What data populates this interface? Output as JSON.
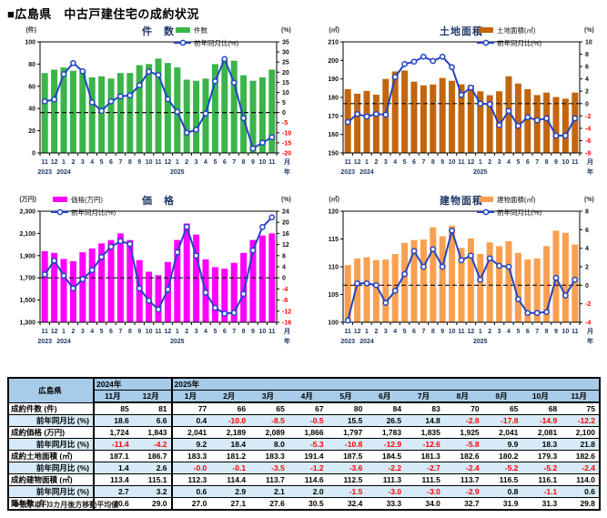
{
  "page_title": "■広島県　中古戸建住宅の成約状況",
  "footnote": "※数字は、3カ月後方移動平均値",
  "axis": {
    "month_suffix": "月",
    "year_suffix": "年"
  },
  "chart_data": [
    {
      "key": "kensu",
      "type": "bar+line",
      "title": "件　数",
      "left_unit": "(件)",
      "right_unit": "(%)",
      "legend_bar": "件数",
      "legend_line": "前年同月比(%)",
      "legend_pos": "right",
      "bar_color": "#3cb44a",
      "line_color": "#2244c4",
      "left_min": 0,
      "left_max": 100,
      "left_step": 20,
      "right_min": -20,
      "right_max": 35,
      "right_step": 5,
      "months": [
        "11",
        "12",
        "1",
        "2",
        "3",
        "4",
        "5",
        "6",
        "7",
        "8",
        "9",
        "10",
        "11",
        "12",
        "1",
        "2",
        "3",
        "4",
        "5",
        "6",
        "7",
        "8",
        "9",
        "10",
        "11"
      ],
      "years": [
        {
          "label": "2023",
          "index": 0
        },
        {
          "label": "2024",
          "index": 2
        },
        {
          "label": "2025",
          "index": 14
        }
      ],
      "bars": [
        72,
        75,
        77,
        74,
        74,
        68,
        69,
        67,
        72,
        72,
        79,
        80,
        85,
        81,
        77,
        66,
        65,
        67,
        80,
        84,
        83,
        70,
        65,
        68,
        75
      ],
      "line": [
        5.5,
        6.5,
        19.0,
        24.5,
        20.5,
        5.0,
        0.8,
        5.5,
        8.0,
        8.5,
        13.5,
        20.3,
        18.6,
        6.6,
        0.4,
        -10.0,
        -8.5,
        -0.5,
        15.5,
        26.5,
        14.8,
        -2.8,
        -17.8,
        -14.9,
        -12.2
      ]
    },
    {
      "key": "tochimenseki",
      "type": "bar+line",
      "title": "土地面積",
      "left_unit": "(㎡)",
      "right_unit": "(%)",
      "legend_bar": "土地面積(㎡)",
      "legend_line": "前年同月比(%)",
      "legend_pos": "right",
      "bar_color": "#c2660e",
      "line_color": "#2244c4",
      "left_min": 150,
      "left_max": 210,
      "left_step": 10,
      "right_min": -8,
      "right_max": 10,
      "right_step": 2,
      "months": [
        "11",
        "12",
        "1",
        "2",
        "3",
        "4",
        "5",
        "6",
        "7",
        "8",
        "9",
        "10",
        "11",
        "12",
        "1",
        "2",
        "3",
        "4",
        "5",
        "6",
        "7",
        "8",
        "9",
        "10",
        "11"
      ],
      "years": [
        {
          "label": "2023",
          "index": 0
        },
        {
          "label": "2024",
          "index": 2
        },
        {
          "label": "2025",
          "index": 14
        }
      ],
      "bars": [
        184.5,
        182.0,
        183.5,
        181.5,
        190.0,
        194.0,
        194.5,
        188.5,
        186.5,
        187.0,
        190.5,
        189.0,
        187.1,
        186.7,
        183.3,
        181.2,
        183.3,
        191.4,
        187.5,
        184.5,
        181.3,
        182.6,
        180.2,
        179.3,
        182.6
      ],
      "line": [
        -3.0,
        -1.7,
        -2.1,
        -1.7,
        -1.8,
        4.3,
        6.4,
        6.8,
        7.6,
        6.9,
        7.6,
        5.9,
        1.4,
        2.6,
        -0.0,
        -0.1,
        -3.5,
        -1.2,
        -3.6,
        -2.2,
        -2.7,
        -2.4,
        -5.2,
        -5.2,
        -2.4
      ]
    },
    {
      "key": "kakaku",
      "type": "bar+line",
      "title": "価　格",
      "left_unit": "(万円)",
      "right_unit": "(%)",
      "legend_bar": "価格(万円)",
      "legend_line": "前年同月比(%)",
      "legend_pos": "left",
      "bar_color": "#ff00ff",
      "line_color": "#2244c4",
      "left_min": 1300,
      "left_max": 2300,
      "left_step": 200,
      "right_min": -16,
      "right_max": 24,
      "right_step": 4,
      "months": [
        "11",
        "12",
        "1",
        "2",
        "3",
        "4",
        "5",
        "6",
        "7",
        "8",
        "9",
        "10",
        "11",
        "12",
        "1",
        "2",
        "3",
        "4",
        "5",
        "6",
        "7",
        "8",
        "9",
        "10",
        "11"
      ],
      "years": [
        {
          "label": "2023",
          "index": 0
        },
        {
          "label": "2024",
          "index": 2
        },
        {
          "label": "2025",
          "index": 14
        }
      ],
      "bars": [
        1940,
        1925,
        1870,
        1850,
        1930,
        1965,
        2010,
        2040,
        2100,
        2040,
        1860,
        1755,
        1724,
        1843,
        2041,
        2189,
        2089,
        1866,
        1797,
        1783,
        1835,
        1925,
        2041,
        2081,
        2100
      ],
      "line": [
        1.2,
        6.2,
        0.8,
        -3.8,
        -0.5,
        2.8,
        7.5,
        11.2,
        13.2,
        12.2,
        -3.8,
        -8.2,
        -11.4,
        -4.2,
        9.2,
        18.4,
        8.0,
        -5.3,
        -10.8,
        -12.9,
        -12.6,
        -5.8,
        9.9,
        18.3,
        21.8
      ]
    },
    {
      "key": "tatemonomenseki",
      "type": "bar+line",
      "title": "建物面積",
      "left_unit": "(㎡)",
      "right_unit": "(%)",
      "legend_bar": "建物面積(㎡)",
      "legend_line": "前年同月比(%)",
      "legend_pos": "right",
      "bar_color": "#f9a050",
      "line_color": "#2244c4",
      "left_min": 100,
      "left_max": 120,
      "left_step": 5,
      "right_min": -4,
      "right_max": 8,
      "right_step": 2,
      "months": [
        "11",
        "12",
        "1",
        "2",
        "3",
        "4",
        "5",
        "6",
        "7",
        "8",
        "9",
        "10",
        "11",
        "12",
        "1",
        "2",
        "3",
        "4",
        "5",
        "6",
        "7",
        "8",
        "9",
        "10",
        "11"
      ],
      "years": [
        {
          "label": "2023",
          "index": 0
        },
        {
          "label": "2024",
          "index": 2
        },
        {
          "label": "2025",
          "index": 14
        }
      ],
      "bars": [
        110.3,
        111.5,
        111.7,
        111.2,
        111.3,
        112.3,
        114.3,
        114.8,
        114.9,
        117.1,
        115.5,
        117.4,
        113.4,
        115.1,
        112.3,
        114.4,
        113.7,
        114.6,
        112.5,
        111.3,
        111.5,
        113.7,
        116.5,
        116.1,
        114.0
      ],
      "line": [
        -3.8,
        0.2,
        0.2,
        0.0,
        -1.9,
        -0.6,
        1.2,
        3.7,
        2.0,
        3.9,
        2.0,
        5.9,
        2.7,
        3.2,
        0.6,
        2.9,
        2.1,
        2.0,
        -1.5,
        -3.0,
        -3.0,
        -2.9,
        0.8,
        -1.1,
        0.6
      ]
    }
  ],
  "table": {
    "corner_label": "広島県",
    "year_groups": [
      {
        "label": "2024年",
        "span": 2
      },
      {
        "label": "2025年",
        "span": 11
      }
    ],
    "month_headers": [
      "11月",
      "12月",
      "1月",
      "2月",
      "3月",
      "4月",
      "5月",
      "6月",
      "7月",
      "8月",
      "9月",
      "10月",
      "11月"
    ],
    "rows": [
      {
        "label": "成約件数 (件)",
        "indent": false,
        "shaded": false,
        "values": [
          "85",
          "81",
          "77",
          "66",
          "65",
          "67",
          "80",
          "84",
          "83",
          "70",
          "65",
          "68",
          "75"
        ]
      },
      {
        "label": "前年同月比 (%)",
        "indent": true,
        "shaded": true,
        "values": [
          "18.6",
          "6.6",
          "0.4",
          "-10.0",
          "-8.5",
          "-0.5",
          "15.5",
          "26.5",
          "14.8",
          "-2.8",
          "-17.8",
          "-14.9",
          "-12.2"
        ]
      },
      {
        "label": "成約価格 (万円)",
        "indent": false,
        "shaded": false,
        "values": [
          "1,724",
          "1,843",
          "2,041",
          "2,189",
          "2,089",
          "1,866",
          "1,797",
          "1,783",
          "1,835",
          "1,925",
          "2,041",
          "2,081",
          "2,100"
        ]
      },
      {
        "label": "前年同月比 (%)",
        "indent": true,
        "shaded": true,
        "values": [
          "-11.4",
          "-4.2",
          "9.2",
          "18.4",
          "8.0",
          "-5.3",
          "-10.8",
          "-12.9",
          "-12.6",
          "-5.8",
          "9.9",
          "18.3",
          "21.8"
        ]
      },
      {
        "label": "成約土地面積 (㎡)",
        "indent": false,
        "shaded": false,
        "values": [
          "187.1",
          "186.7",
          "183.3",
          "181.2",
          "183.3",
          "191.4",
          "187.5",
          "184.5",
          "181.3",
          "182.6",
          "180.2",
          "179.3",
          "182.6"
        ]
      },
      {
        "label": "前年同月比 (%)",
        "indent": true,
        "shaded": true,
        "values": [
          "1.4",
          "2.6",
          "-0.0",
          "-0.1",
          "-3.5",
          "-1.2",
          "-3.6",
          "-2.2",
          "-2.7",
          "-2.4",
          "-5.2",
          "-5.2",
          "-2.4"
        ]
      },
      {
        "label": "成約建物面積 (㎡)",
        "indent": false,
        "shaded": false,
        "values": [
          "113.4",
          "115.1",
          "112.3",
          "114.4",
          "113.7",
          "114.6",
          "112.5",
          "111.3",
          "111.5",
          "113.7",
          "116.5",
          "116.1",
          "114.0"
        ]
      },
      {
        "label": "前年同月比 (%)",
        "indent": true,
        "shaded": true,
        "values": [
          "2.7",
          "3.2",
          "0.6",
          "2.9",
          "2.1",
          "2.0",
          "-1.5",
          "-3.0",
          "-3.0",
          "-2.9",
          "0.8",
          "-1.1",
          "0.6"
        ]
      },
      {
        "label": "築年数 (年)",
        "indent": false,
        "shaded": false,
        "values": [
          "30.6",
          "29.0",
          "27.0",
          "27.1",
          "27.6",
          "30.5",
          "32.4",
          "33.3",
          "34.0",
          "32.7",
          "31.9",
          "31.3",
          "29.8"
        ]
      }
    ]
  }
}
